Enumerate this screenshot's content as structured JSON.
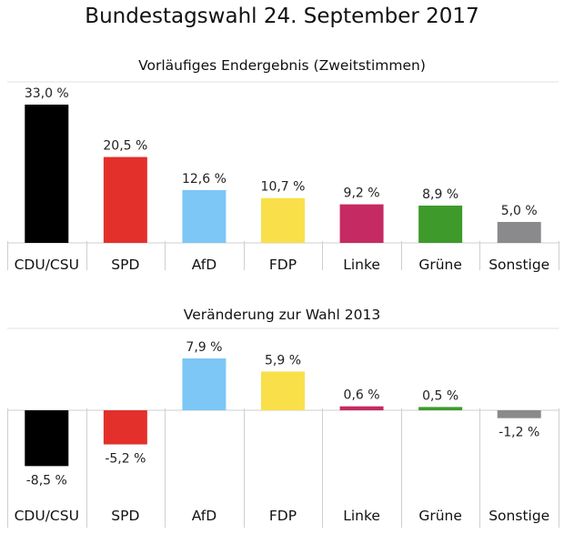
{
  "title": "Bundestagswahl 24. September 2017",
  "colors": {
    "CDU/CSU": "#000000",
    "SPD": "#e3302b",
    "AfD": "#7cc7f6",
    "FDP": "#f9e04a",
    "Linke": "#c52a62",
    "Grüne": "#3e9a2b",
    "Sonstige": "#8a8a8d"
  },
  "chart_data": [
    {
      "type": "bar",
      "title": "Vorläufiges Endergebnis (Zweitstimmen)",
      "categories": [
        "CDU/CSU",
        "SPD",
        "AfD",
        "FDP",
        "Linke",
        "Grüne",
        "Sonstige"
      ],
      "values": [
        33.0,
        20.5,
        12.6,
        10.7,
        9.2,
        8.9,
        5.0
      ],
      "value_labels": [
        "33,0 %",
        "20,5 %",
        "12,6 %",
        "10,7 %",
        "9,2 %",
        "8,9 %",
        "5,0 %"
      ],
      "ylim": [
        0,
        35
      ],
      "grid": false,
      "legend": "none"
    },
    {
      "type": "bar",
      "title": "Veränderung zur Wahl 2013",
      "categories": [
        "CDU/CSU",
        "SPD",
        "AfD",
        "FDP",
        "Linke",
        "Grüne",
        "Sonstige"
      ],
      "values": [
        -8.5,
        -5.2,
        7.9,
        5.9,
        0.6,
        0.5,
        -1.2
      ],
      "value_labels": [
        "-8,5 %",
        "-5,2 %",
        "7,9 %",
        "5,9 %",
        "0,6 %",
        "0,5 %",
        "-1,2 %"
      ],
      "ylim": [
        -10,
        10
      ],
      "grid": false,
      "legend": "none"
    }
  ]
}
